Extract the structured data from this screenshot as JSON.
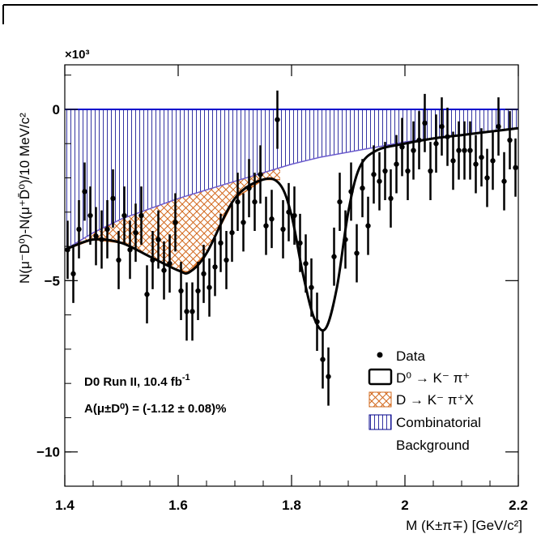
{
  "chart_data": {
    "type": "scatter",
    "xlabel": "M (K±π∓) [GeV/c²]",
    "ylabel": "N(μ⁻D⁰)-N(μ⁺D̄⁰)/10 MeV/c²",
    "y_multiplier": "×10³",
    "xlim": [
      1.4,
      2.2
    ],
    "ylim": [
      -11.0,
      1.3
    ],
    "x_ticks": [
      {
        "value": 1.4,
        "label": "1.4"
      },
      {
        "value": 1.6,
        "label": "1.6"
      },
      {
        "value": 1.8,
        "label": "1.8"
      },
      {
        "value": 2.0,
        "label": "2"
      },
      {
        "value": 2.2,
        "label": "2.2"
      }
    ],
    "y_ticks": [
      {
        "value": 0,
        "label": "0"
      },
      {
        "value": -5,
        "label": "−5"
      },
      {
        "value": -10,
        "label": "−10"
      }
    ],
    "annotations": {
      "line1": "D0 Run II, 10.4 fb",
      "line1_sup": "-1",
      "line2": "A(μ±D⁰) =  (-1.12 ± 0.08)%"
    },
    "legend": {
      "placement": "bottom-right",
      "entries": [
        {
          "marker": "point",
          "label": "Data"
        },
        {
          "marker": "open-box",
          "label": "D⁰ → K⁻ π⁺"
        },
        {
          "marker": "crosshatch",
          "label": "D →  K⁻ π⁺X"
        },
        {
          "marker": "vertical-hatch",
          "label": "Combinatorial"
        },
        {
          "marker": "none",
          "label": "Background"
        }
      ]
    },
    "colors": {
      "data": "#000000",
      "signal_line": "#000000",
      "partial_reco": "#d2691e",
      "combinatorial": "#00008b",
      "zero_line": "#0000cd"
    },
    "series": [
      {
        "name": "Data",
        "x": [
          1.405,
          1.415,
          1.425,
          1.435,
          1.445,
          1.455,
          1.465,
          1.475,
          1.485,
          1.495,
          1.505,
          1.515,
          1.525,
          1.535,
          1.545,
          1.555,
          1.565,
          1.575,
          1.585,
          1.595,
          1.605,
          1.615,
          1.625,
          1.635,
          1.645,
          1.655,
          1.665,
          1.675,
          1.685,
          1.695,
          1.705,
          1.715,
          1.725,
          1.735,
          1.745,
          1.755,
          1.765,
          1.775,
          1.785,
          1.795,
          1.805,
          1.815,
          1.825,
          1.835,
          1.845,
          1.855,
          1.865,
          1.875,
          1.885,
          1.895,
          1.905,
          1.915,
          1.925,
          1.935,
          1.945,
          1.955,
          1.965,
          1.975,
          1.985,
          1.995,
          2.005,
          2.015,
          2.025,
          2.035,
          2.045,
          2.055,
          2.065,
          2.075,
          2.085,
          2.095,
          2.105,
          2.115,
          2.125,
          2.135,
          2.145,
          2.155,
          2.165,
          2.175,
          2.185,
          2.195
        ],
        "y": [
          -4.1,
          -4.8,
          -3.5,
          -2.4,
          -3.1,
          -3.7,
          -3.8,
          -3.5,
          -2.6,
          -4.4,
          -3.1,
          -4.1,
          -3.6,
          -3.1,
          -5.4,
          -4.4,
          -3.8,
          -4.7,
          -4.5,
          -3.3,
          -5.3,
          -5.9,
          -5.9,
          -5.3,
          -4.8,
          -5.2,
          -4.6,
          -3.9,
          -4.4,
          -3.6,
          -2.7,
          -3.3,
          -2.3,
          -2.7,
          -1.9,
          -3.4,
          -3.2,
          -0.3,
          -3.5,
          -3.0,
          -3.1,
          -3.9,
          -4.5,
          -5.2,
          -6.2,
          -7.3,
          -7.8,
          -4.3,
          -2.7,
          -3.8,
          -2.4,
          -4.2,
          -2.3,
          -3.4,
          -1.9,
          -2.1,
          -1.8,
          -2.6,
          -1.6,
          -1.1,
          -1.8,
          -1.2,
          -0.9,
          -0.4,
          -1.8,
          -1.0,
          -0.5,
          -0.8,
          -1.5,
          -1.2,
          -1.2,
          -1.2,
          -1.6,
          -1.4,
          -2.0,
          -1.5,
          -0.5,
          -2.1,
          -0.9,
          -1.7
        ],
        "err": [
          0.85,
          0.85,
          0.85,
          0.85,
          0.85,
          0.85,
          0.85,
          0.85,
          0.85,
          0.85,
          0.85,
          0.85,
          0.85,
          0.85,
          0.85,
          0.85,
          0.85,
          0.85,
          0.85,
          0.85,
          0.85,
          0.85,
          0.85,
          0.85,
          0.85,
          0.85,
          0.85,
          0.85,
          0.85,
          0.85,
          0.85,
          0.85,
          0.85,
          0.85,
          0.85,
          0.85,
          0.85,
          0.85,
          0.85,
          0.85,
          0.85,
          0.85,
          0.85,
          0.85,
          0.85,
          0.85,
          0.85,
          0.85,
          0.85,
          0.85,
          0.85,
          0.85,
          0.85,
          0.85,
          0.85,
          0.85,
          0.85,
          0.85,
          0.85,
          0.85,
          0.85,
          0.85,
          0.85,
          0.85,
          0.85,
          0.85,
          0.85,
          0.85,
          0.85,
          0.85,
          0.85,
          0.85,
          0.85,
          0.85,
          0.85,
          0.85,
          0.85,
          0.85,
          0.85,
          0.85
        ]
      },
      {
        "name": "D⁰ → K⁻ π⁺",
        "x": [
          1.4,
          1.45,
          1.5,
          1.55,
          1.6,
          1.62,
          1.65,
          1.7,
          1.75,
          1.78,
          1.8,
          1.82,
          1.84,
          1.86,
          1.88,
          1.9,
          1.92,
          1.95,
          2.0,
          2.05,
          2.1,
          2.15,
          2.2
        ],
        "y": [
          -4.1,
          -3.8,
          -3.9,
          -4.3,
          -4.7,
          -4.75,
          -4.2,
          -2.6,
          -2.05,
          -2.2,
          -3.1,
          -4.8,
          -6.1,
          -6.4,
          -5.2,
          -3.0,
          -1.7,
          -1.2,
          -1.0,
          -0.85,
          -0.75,
          -0.65,
          -0.55
        ]
      },
      {
        "name": "D →  K⁻ π⁺X",
        "x": [
          1.4,
          1.45,
          1.5,
          1.55,
          1.6,
          1.62,
          1.65,
          1.7,
          1.75,
          1.78
        ],
        "y": [
          -4.1,
          -3.8,
          -3.9,
          -4.3,
          -4.7,
          -4.75,
          -4.2,
          -2.6,
          -2.05,
          -2.05
        ]
      },
      {
        "name": "Combinatorial Background",
        "x": [
          1.4,
          1.45,
          1.5,
          1.55,
          1.6,
          1.65,
          1.7,
          1.75,
          1.8,
          1.85,
          1.9,
          1.95,
          2.0,
          2.05,
          2.1,
          2.15,
          2.2
        ],
        "y": [
          -4.1,
          -3.6,
          -3.2,
          -2.9,
          -2.6,
          -2.35,
          -2.1,
          -1.85,
          -1.6,
          -1.4,
          -1.25,
          -1.1,
          -0.95,
          -0.85,
          -0.75,
          -0.65,
          -0.55
        ]
      }
    ]
  }
}
